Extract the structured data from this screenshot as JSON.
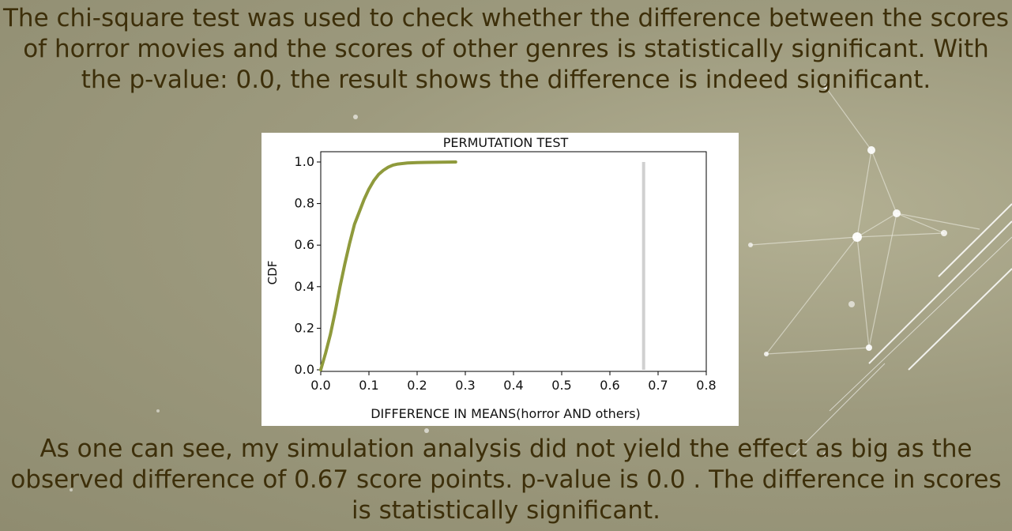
{
  "text": {
    "top_paragraph": "The chi-square test was used to check whether the difference between the scores of horror movies and the scores of other genres is statistically significant. With the p-value: 0.0, the result shows the difference is indeed significant.",
    "bottom_paragraph": "As one can see, my simulation analysis did not yield the effect as big as the observed difference of 0.67 score points. p-value is 0.0 . The difference in scores is statistically significant."
  },
  "colors": {
    "text": "#3d2f0a",
    "cdf_line": "#8f9a3c",
    "observed_line": "#d0d0d0"
  },
  "chart_data": {
    "type": "line",
    "title": "PERMUTATION TEST",
    "xlabel": "DIFFERENCE IN MEANS(horror AND others)",
    "ylabel": "CDF",
    "xlim": [
      0.0,
      0.8
    ],
    "ylim": [
      0.0,
      1.0
    ],
    "x_ticks": [
      "0.0",
      "0.1",
      "0.2",
      "0.3",
      "0.4",
      "0.5",
      "0.6",
      "0.7",
      "0.8"
    ],
    "y_ticks": [
      "0.0",
      "0.2",
      "0.4",
      "0.6",
      "0.8",
      "1.0"
    ],
    "grid": false,
    "series": [
      {
        "kind": "cdf",
        "x": [
          0.0,
          0.01,
          0.02,
          0.03,
          0.04,
          0.05,
          0.06,
          0.07,
          0.08,
          0.09,
          0.1,
          0.11,
          0.12,
          0.13,
          0.14,
          0.15,
          0.16,
          0.18,
          0.2,
          0.22,
          0.25,
          0.28
        ],
        "y": [
          0.0,
          0.08,
          0.17,
          0.28,
          0.4,
          0.51,
          0.61,
          0.7,
          0.76,
          0.82,
          0.87,
          0.91,
          0.94,
          0.96,
          0.975,
          0.985,
          0.99,
          0.995,
          0.997,
          0.998,
          0.999,
          1.0
        ]
      },
      {
        "kind": "observed_difference",
        "x": [
          0.67,
          0.67
        ],
        "y": [
          0.0,
          1.0
        ]
      }
    ]
  }
}
